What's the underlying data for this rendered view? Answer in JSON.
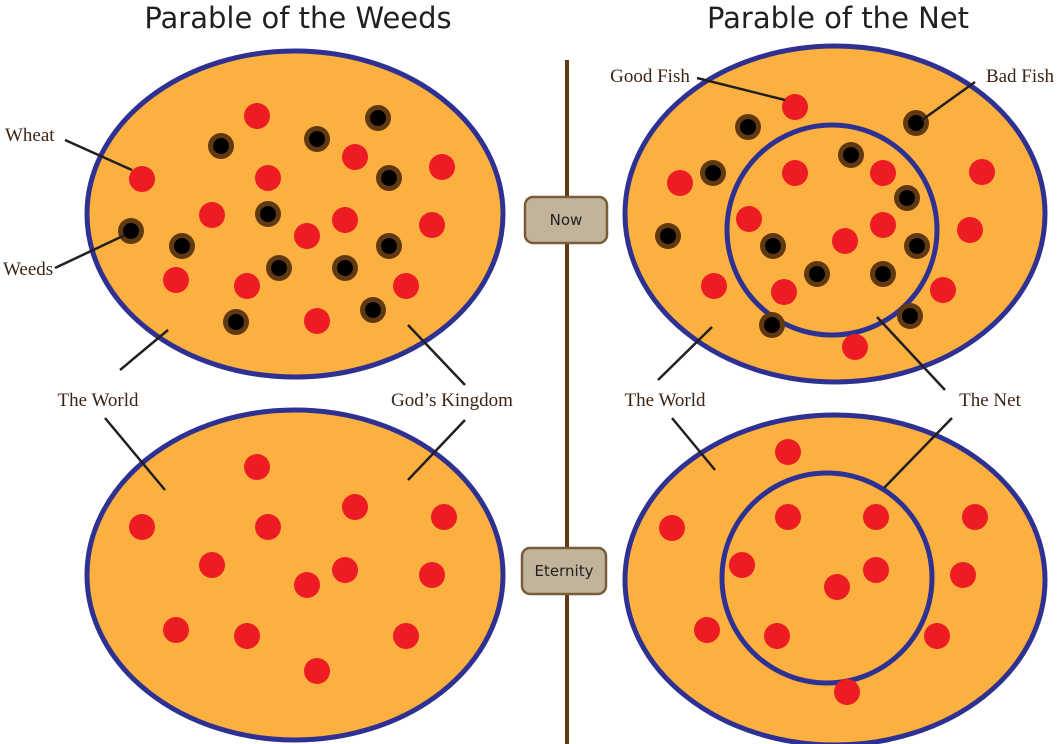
{
  "titles": {
    "left": "Parable of the Weeds",
    "right": "Parable of the Net"
  },
  "left_labels": {
    "wheat": "Wheat",
    "weeds": "Weeds",
    "world": "The World",
    "kingdom": "God’s Kingdom"
  },
  "right_labels": {
    "good_fish": "Good Fish",
    "bad_fish": "Bad Fish",
    "world": "The World",
    "net": "The Net"
  },
  "timeline": {
    "now": "Now",
    "eternity": "Eternity"
  }
}
